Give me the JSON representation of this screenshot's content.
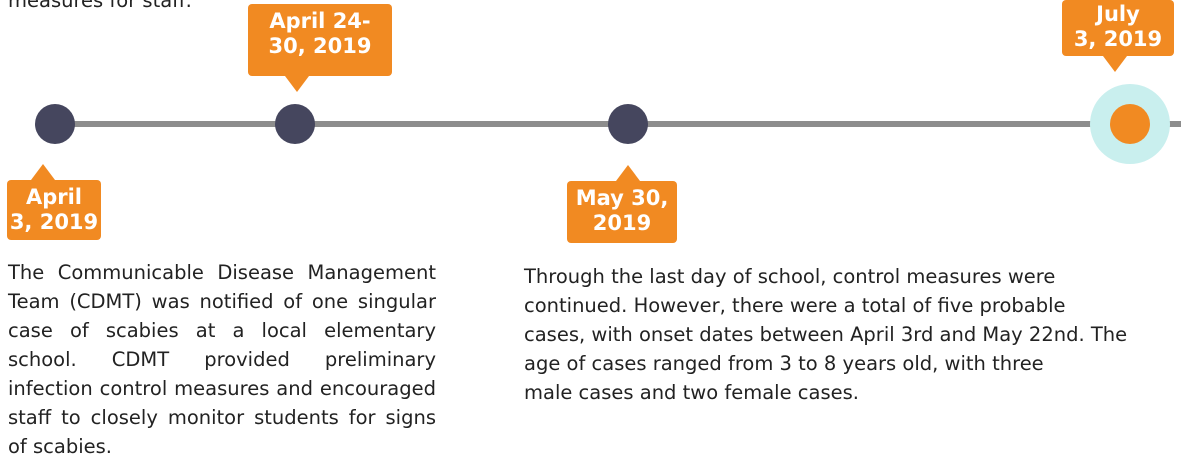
{
  "top_text": "measures for staff.",
  "events": [
    {
      "date_lines": [
        "April",
        "3, 2019"
      ]
    },
    {
      "date_lines": [
        "April 24-",
        "30, 2019"
      ]
    },
    {
      "date_lines": [
        "May 30,",
        "2019"
      ]
    },
    {
      "date_lines": [
        "July",
        "3, 2019"
      ]
    }
  ],
  "left_paragraph": "The Communicable Disease Management Team (CDMT) was notified of one singular case of scabies at a local elementary school. CDMT provided preliminary infection control measures and encouraged staff to closely monitor students for signs of scabies.",
  "right_paragraph_lines": [
    "Through the last day of school, control measures were",
    "continued.  However, there were a total of five probable",
    "cases, with onset dates between April 3rd and May 22nd. The",
    "age of cases ranged from 3 to 8  years old, with three",
    "male cases and two female cases."
  ]
}
